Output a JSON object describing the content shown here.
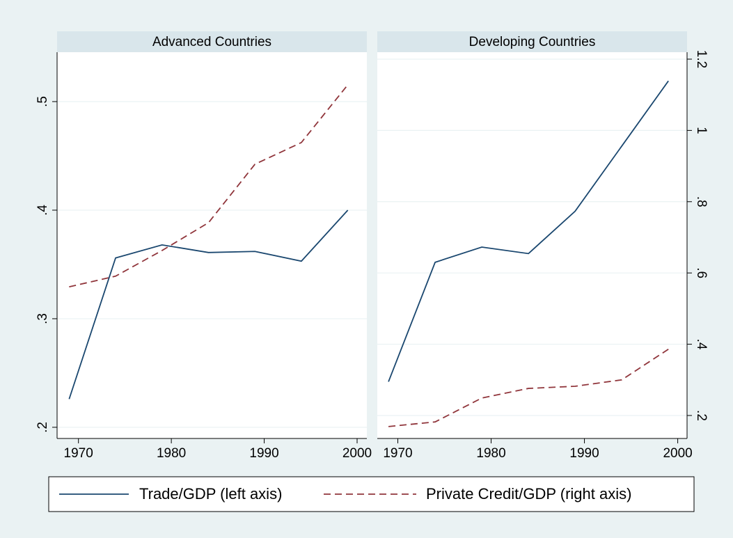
{
  "chart_data": [
    {
      "type": "line",
      "title": "Advanced Countries",
      "x": [
        1969,
        1974,
        1979,
        1984,
        1989,
        1994,
        1999
      ],
      "series": [
        {
          "name": "Trade/GDP (left axis)",
          "color": "#1a476f",
          "dash": "solid",
          "axis": "y",
          "values": [
            0.226,
            0.356,
            0.368,
            0.361,
            0.362,
            0.353,
            0.4
          ]
        },
        {
          "name": "Private Credit/GDP (right axis)",
          "color": "#90353b",
          "dash": "dashed",
          "axis": "y2",
          "values": [
            0.561,
            0.591,
            0.663,
            0.741,
            0.905,
            0.966,
            1.128
          ]
        }
      ],
      "xlim": [
        1967.7,
        2001.05
      ],
      "xticks": [
        1970,
        1980,
        1990,
        2000
      ],
      "ylim": [
        0.1897,
        0.5455
      ],
      "yticks": [
        {
          "value": 0.2,
          "label": ".2"
        },
        {
          "value": 0.3,
          "label": ".3"
        },
        {
          "value": 0.4,
          "label": ".4"
        },
        {
          "value": 0.5,
          "label": ".5"
        }
      ],
      "y2lim": [
        0.1355,
        1.2195
      ],
      "grid": true
    },
    {
      "type": "line",
      "title": "Developing Countries",
      "x": [
        1969,
        1974,
        1979,
        1984,
        1989,
        1994,
        1999
      ],
      "series": [
        {
          "name": "Trade/GDP (left axis)",
          "color": "#1a476f",
          "dash": "solid",
          "axis": "y",
          "values": [
            0.242,
            0.352,
            0.366,
            0.36,
            0.399,
            0.459,
            0.519
          ]
        },
        {
          "name": "Private Credit/GDP (right axis)",
          "color": "#90353b",
          "dash": "dashed",
          "axis": "y2",
          "values": [
            0.169,
            0.182,
            0.249,
            0.276,
            0.282,
            0.3,
            0.386
          ]
        }
      ],
      "xlim": [
        1967.8,
        2001.0
      ],
      "xticks": [
        1970,
        1980,
        1990,
        2000
      ],
      "ylim": [
        0.1897,
        0.5455
      ],
      "y2lim": [
        0.1355,
        1.2195
      ],
      "y2ticks": [
        {
          "value": 0.2,
          "label": ".2"
        },
        {
          "value": 0.4,
          "label": ".4"
        },
        {
          "value": 0.6,
          "label": ".6"
        },
        {
          "value": 0.8,
          "label": ".8"
        },
        1,
        1.2
      ],
      "grid": true
    }
  ]
}
